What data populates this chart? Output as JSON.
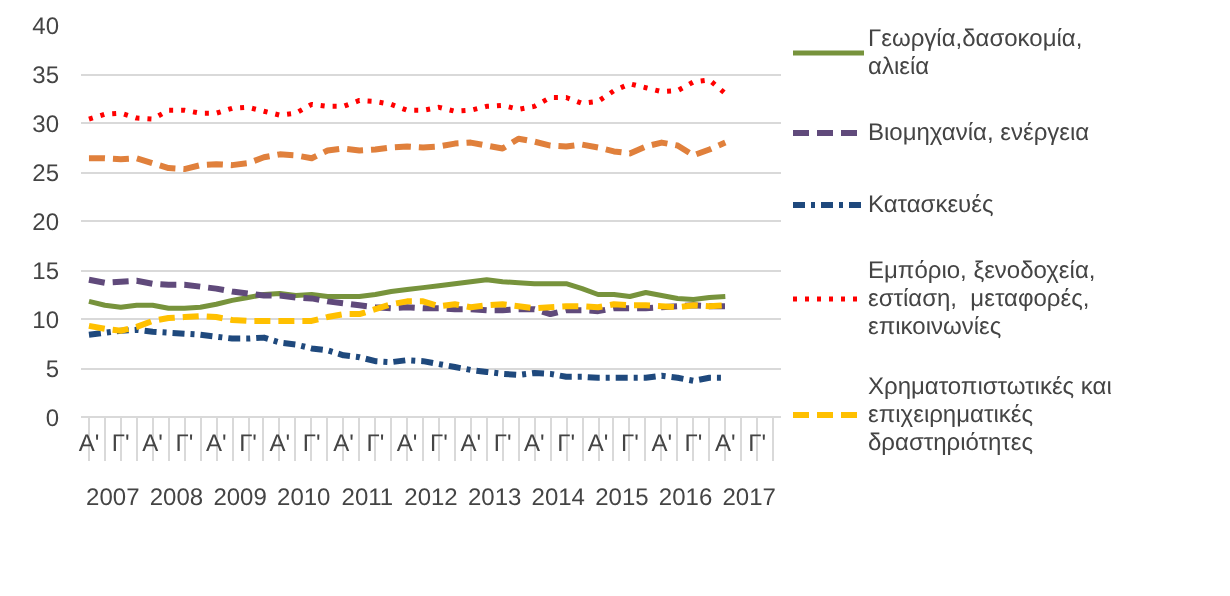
{
  "chart_data": {
    "type": "line",
    "categories": [
      "Α'",
      null,
      "Γ'",
      null,
      "Α'",
      null,
      "Γ'",
      null,
      "Α'",
      null,
      "Γ'",
      null,
      "Α'",
      null,
      "Γ'",
      null,
      "Α'",
      null,
      "Γ'",
      null,
      "Α'",
      null,
      "Γ'",
      null,
      "Α'",
      null,
      "Γ'",
      null,
      "Α'",
      null,
      "Γ'",
      null,
      "Α'",
      null,
      "Γ'",
      null,
      "Α'",
      null,
      "Γ'",
      null,
      "Α'",
      null,
      "Γ'",
      null
    ],
    "annotations": [
      "2007",
      "2008",
      "2009",
      "2010",
      "2011",
      "2012",
      "2013",
      "2014",
      "2015",
      "2016",
      "2017"
    ],
    "ylim": [
      0,
      40
    ],
    "yticks": [
      0,
      5,
      10,
      15,
      20,
      25,
      30,
      35,
      40
    ],
    "grid": "y",
    "legend": "right",
    "marker": "none",
    "series": [
      {
        "name": "Γεωργία,δασοκομία, αλιεία",
        "color": "#77933c",
        "line_style": "solid",
        "values": [
          11.8,
          11.4,
          11.2,
          11.4,
          11.4,
          11.1,
          11.1,
          11.2,
          11.5,
          11.9,
          12.2,
          12.5,
          12.6,
          12.4,
          12.5,
          12.3,
          12.3,
          12.3,
          12.5,
          12.8,
          13.0,
          13.2,
          13.4,
          13.6,
          13.8,
          14.0,
          13.8,
          13.7,
          13.6,
          13.6,
          13.6,
          13.1,
          12.5,
          12.5,
          12.3,
          12.7,
          12.4,
          12.1,
          12.0,
          12.2,
          12.3,
          null,
          null,
          null
        ]
      },
      {
        "name": "Βιομηχανία, ενέργεια",
        "color": "#604a7b",
        "line_style": "dashed",
        "values": [
          14.0,
          13.7,
          13.8,
          13.9,
          13.6,
          13.5,
          13.5,
          13.3,
          13.1,
          12.8,
          12.6,
          12.4,
          12.4,
          12.2,
          12.1,
          11.8,
          11.6,
          11.4,
          11.2,
          11.1,
          11.2,
          11.1,
          11.1,
          11.0,
          11.0,
          10.9,
          10.9,
          11.0,
          11.0,
          10.5,
          10.9,
          10.9,
          10.8,
          11.1,
          11.1,
          11.1,
          11.2,
          11.3,
          11.4,
          11.3,
          11.3,
          null,
          null,
          null
        ]
      },
      {
        "name": "Κατασκευές",
        "color": "#1f497d",
        "line_style": "dashdot",
        "values": [
          8.4,
          8.6,
          8.8,
          8.9,
          8.7,
          8.6,
          8.5,
          8.4,
          8.2,
          8.0,
          8.0,
          8.1,
          7.6,
          7.4,
          7.0,
          6.8,
          6.3,
          6.1,
          5.7,
          5.6,
          5.8,
          5.7,
          5.4,
          5.1,
          4.8,
          4.6,
          4.4,
          4.3,
          4.5,
          4.4,
          4.1,
          4.1,
          4.0,
          4.0,
          4.0,
          4.0,
          4.2,
          4.0,
          3.7,
          4.0,
          4.0,
          null,
          null,
          null
        ]
      },
      {
        "name": "Εμπόριο, ξενοδοχεία, εστίαση,  μεταφορές, επικοινωνίες",
        "color": "#ff0000",
        "line_style": "dotted",
        "values": [
          30.4,
          30.9,
          31.0,
          30.5,
          30.4,
          31.3,
          31.3,
          31.0,
          31.0,
          31.5,
          31.6,
          31.2,
          30.8,
          31.0,
          31.9,
          31.7,
          31.7,
          32.3,
          32.2,
          31.9,
          31.3,
          31.3,
          31.6,
          31.2,
          31.3,
          31.7,
          31.8,
          31.4,
          31.7,
          32.6,
          32.6,
          32.0,
          32.2,
          33.3,
          34.0,
          33.6,
          33.2,
          33.3,
          34.2,
          34.4,
          33.0,
          null,
          null,
          null
        ]
      },
      {
        "name": "Χρηματοπιστωτικές και επιχειρηματικές δραστηριότητες",
        "color": "#ffc000",
        "line_style": "dashed",
        "values": [
          9.3,
          9.0,
          8.8,
          9.2,
          9.8,
          10.1,
          10.2,
          10.3,
          10.2,
          9.9,
          9.8,
          9.8,
          9.8,
          9.8,
          9.8,
          10.2,
          10.5,
          10.5,
          11.0,
          11.5,
          11.8,
          11.8,
          11.3,
          11.5,
          11.2,
          11.4,
          11.5,
          11.3,
          11.1,
          11.2,
          11.3,
          11.3,
          11.2,
          11.5,
          11.4,
          11.4,
          11.3,
          11.2,
          11.4,
          11.3,
          11.4,
          null,
          null,
          null
        ]
      },
      {
        "color": "#e0803c",
        "line_style": "dashed",
        "values": [
          26.4,
          26.4,
          26.3,
          26.4,
          25.9,
          25.4,
          25.3,
          25.7,
          25.8,
          25.7,
          25.9,
          26.5,
          26.8,
          26.7,
          26.4,
          27.2,
          27.4,
          27.2,
          27.3,
          27.5,
          27.6,
          27.5,
          27.6,
          27.9,
          28.0,
          27.7,
          27.4,
          28.4,
          28.1,
          27.7,
          27.6,
          27.8,
          27.5,
          27.1,
          26.9,
          27.6,
          28.0,
          27.7,
          26.7,
          27.3,
          28.0,
          null,
          null,
          null
        ]
      }
    ]
  }
}
